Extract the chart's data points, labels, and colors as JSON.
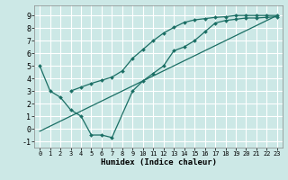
{
  "xlabel": "Humidex (Indice chaleur)",
  "bg_color": "#cce8e6",
  "grid_color": "#ffffff",
  "line_color": "#1a6e64",
  "xlim": [
    -0.5,
    23.5
  ],
  "ylim": [
    -1.5,
    9.8
  ],
  "xticks": [
    0,
    1,
    2,
    3,
    4,
    5,
    6,
    7,
    8,
    9,
    10,
    11,
    12,
    13,
    14,
    15,
    16,
    17,
    18,
    19,
    20,
    21,
    22,
    23
  ],
  "yticks": [
    -1,
    0,
    1,
    2,
    3,
    4,
    5,
    6,
    7,
    8,
    9
  ],
  "line1_x": [
    0,
    1,
    2,
    3,
    4,
    5,
    6,
    7,
    9,
    10,
    11,
    12,
    13,
    14,
    15,
    16,
    17,
    18,
    19,
    20,
    21,
    22,
    23
  ],
  "line1_y": [
    5.0,
    3.0,
    2.5,
    1.5,
    1.0,
    -0.5,
    -0.5,
    -0.7,
    3.0,
    3.8,
    4.4,
    5.0,
    6.2,
    6.5,
    7.0,
    7.7,
    8.4,
    8.6,
    8.7,
    8.8,
    8.8,
    8.85,
    8.9
  ],
  "line2_x": [
    3,
    4,
    5,
    6,
    7,
    8,
    9,
    10,
    11,
    12,
    13,
    14,
    15,
    16,
    17,
    18,
    19,
    20,
    21,
    22,
    23
  ],
  "line2_y": [
    3.0,
    3.3,
    3.6,
    3.85,
    4.1,
    4.6,
    5.6,
    6.3,
    7.0,
    7.6,
    8.05,
    8.45,
    8.65,
    8.75,
    8.85,
    8.9,
    9.0,
    9.0,
    9.0,
    9.0,
    9.0
  ],
  "line3_x": [
    0,
    23
  ],
  "line3_y": [
    -0.2,
    9.0
  ]
}
